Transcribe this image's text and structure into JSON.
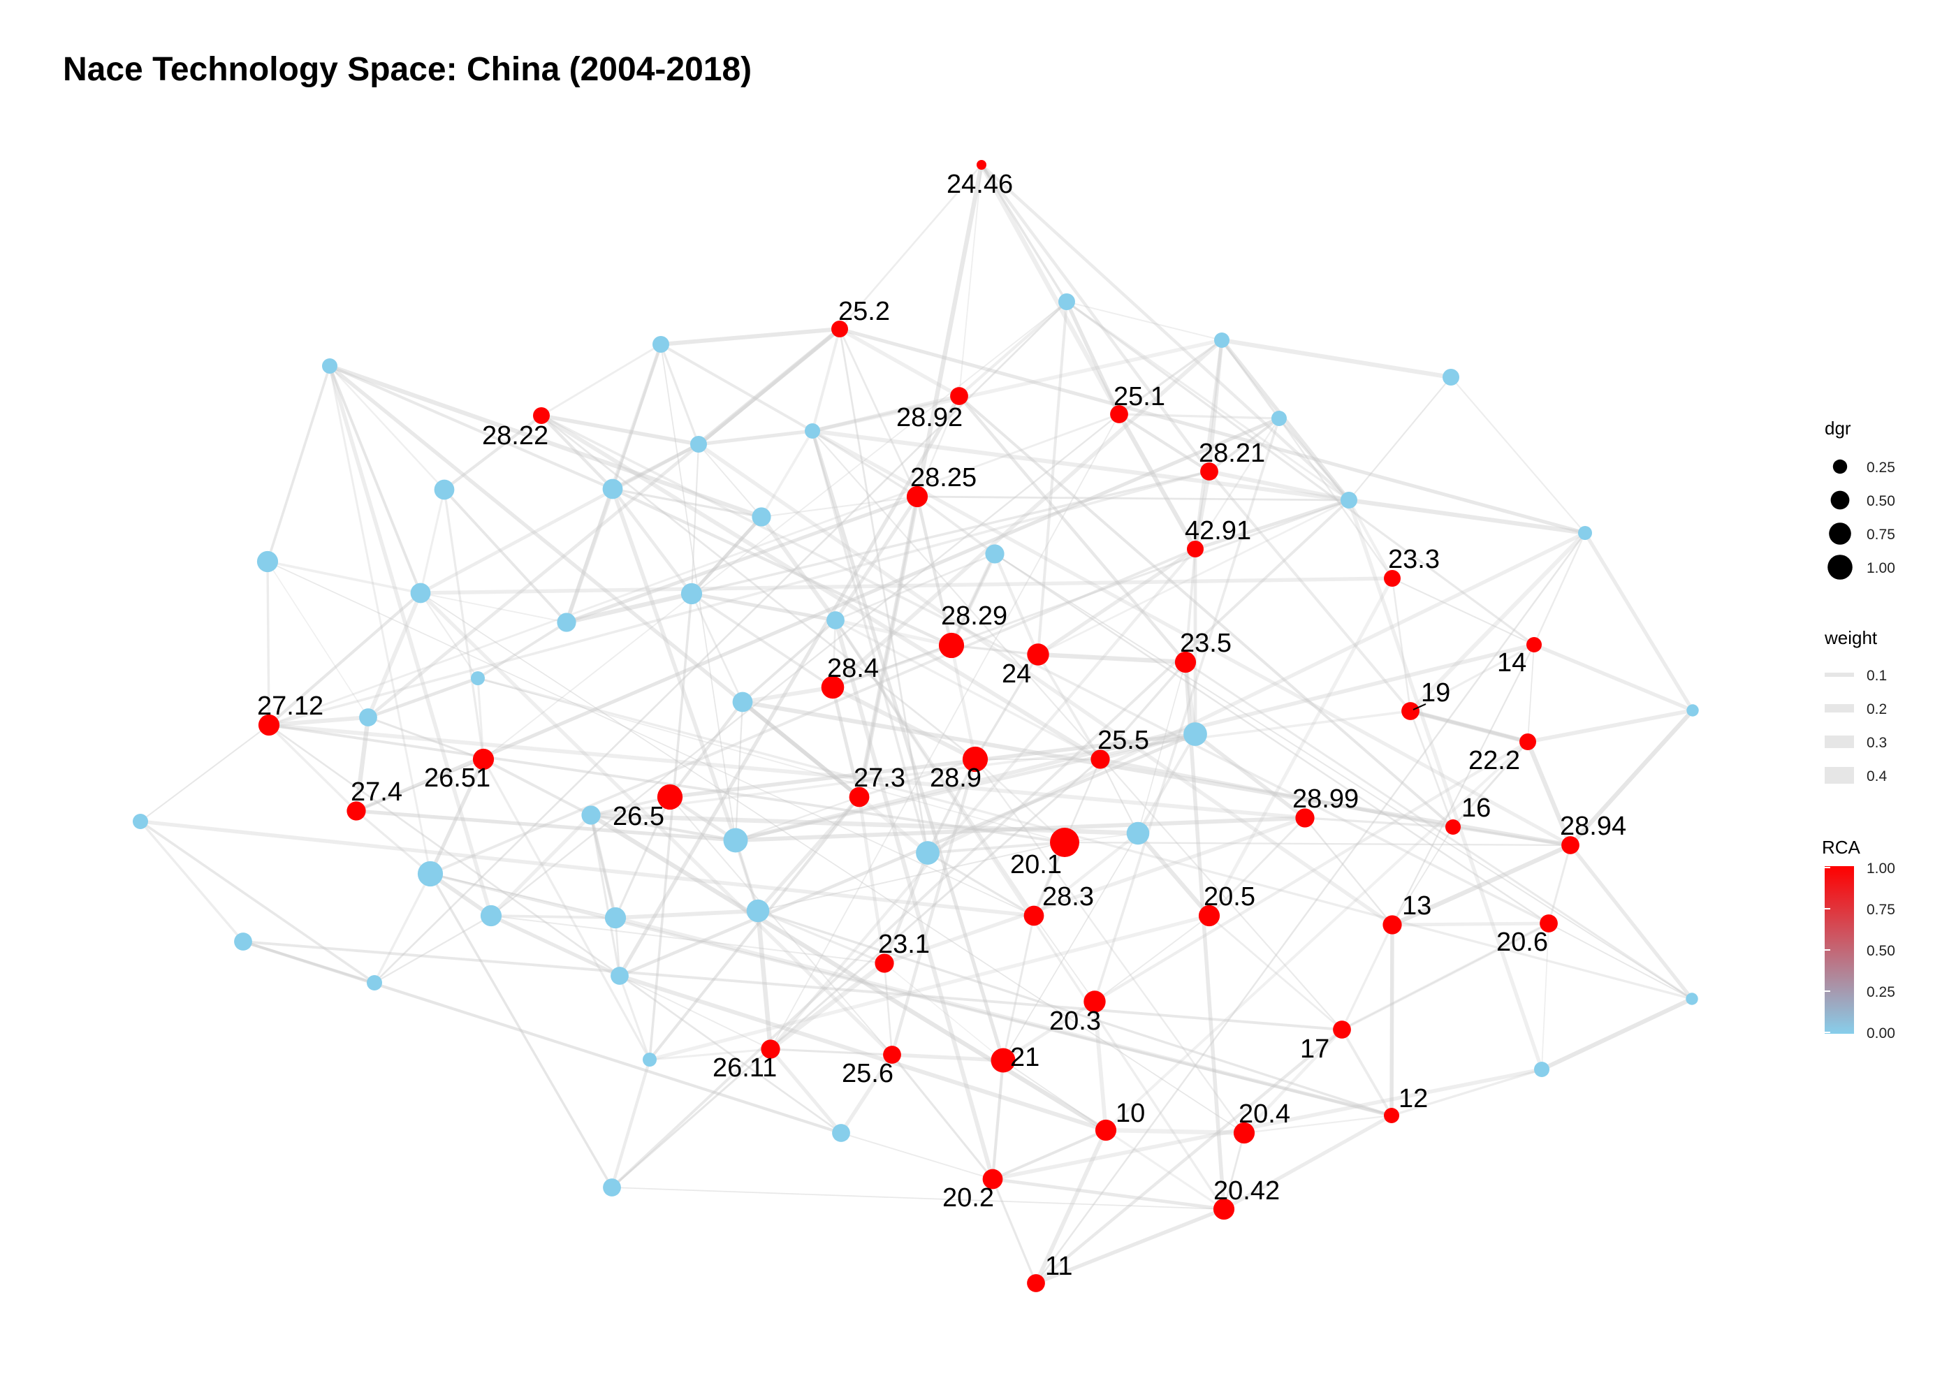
{
  "title": "Nace Technology Space: China (2004-2018)",
  "colors": {
    "rca_low": "#87ceeb",
    "rca_high": "#ff0000",
    "edge": "#c8c8c8",
    "text": "#000000",
    "background": "#ffffff"
  },
  "chart_data": {
    "type": "network",
    "title": "Nace Technology Space: China (2004-2018)",
    "nodes": [
      {
        "id": "24.46",
        "label": "24.46",
        "rca": 1,
        "dgr": 0.05
      },
      {
        "id": "25.2",
        "label": "25.2",
        "rca": 1,
        "dgr": 0.25
      },
      {
        "id": "28.92",
        "label": "28.92",
        "rca": 1,
        "dgr": 0.3
      },
      {
        "id": "25.1",
        "label": "25.1",
        "rca": 1,
        "dgr": 0.3
      },
      {
        "id": "28.22",
        "label": "28.22",
        "rca": 1,
        "dgr": 0.25
      },
      {
        "id": "28.21",
        "label": "28.21",
        "rca": 1,
        "dgr": 0.3
      },
      {
        "id": "28.25",
        "label": "28.25",
        "rca": 1,
        "dgr": 0.45
      },
      {
        "id": "42.91",
        "label": "42.91",
        "rca": 1,
        "dgr": 0.25
      },
      {
        "id": "23.3",
        "label": "23.3",
        "rca": 1,
        "dgr": 0.25
      },
      {
        "id": "28.29",
        "label": "28.29",
        "rca": 1,
        "dgr": 0.7
      },
      {
        "id": "24",
        "label": "24",
        "rca": 1,
        "dgr": 0.5
      },
      {
        "id": "23.5",
        "label": "23.5",
        "rca": 1,
        "dgr": 0.45
      },
      {
        "id": "14",
        "label": "14",
        "rca": 1,
        "dgr": 0.2
      },
      {
        "id": "28.4",
        "label": "28.4",
        "rca": 1,
        "dgr": 0.55
      },
      {
        "id": "19",
        "label": "19",
        "rca": 1,
        "dgr": 0.3
      },
      {
        "id": "27.12",
        "label": "27.12",
        "rca": 1,
        "dgr": 0.45
      },
      {
        "id": "26.51",
        "label": "26.51",
        "rca": 1,
        "dgr": 0.45
      },
      {
        "id": "25.5",
        "label": "25.5",
        "rca": 1,
        "dgr": 0.35
      },
      {
        "id": "22.2",
        "label": "22.2",
        "rca": 1,
        "dgr": 0.25
      },
      {
        "id": "28.9",
        "label": "28.9",
        "rca": 1,
        "dgr": 0.7
      },
      {
        "id": "27.3",
        "label": "27.3",
        "rca": 1,
        "dgr": 0.4
      },
      {
        "id": "27.4",
        "label": "27.4",
        "rca": 1,
        "dgr": 0.35
      },
      {
        "id": "26.5",
        "label": "26.5",
        "rca": 1,
        "dgr": 0.7
      },
      {
        "id": "28.99",
        "label": "28.99",
        "rca": 1,
        "dgr": 0.35
      },
      {
        "id": "16",
        "label": "16",
        "rca": 1,
        "dgr": 0.2
      },
      {
        "id": "28.94",
        "label": "28.94",
        "rca": 1,
        "dgr": 0.3
      },
      {
        "id": "20.1",
        "label": "20.1",
        "rca": 1,
        "dgr": 1.0
      },
      {
        "id": "28.3",
        "label": "28.3",
        "rca": 1,
        "dgr": 0.4
      },
      {
        "id": "20.5",
        "label": "20.5",
        "rca": 1,
        "dgr": 0.45
      },
      {
        "id": "13",
        "label": "13",
        "rca": 1,
        "dgr": 0.35
      },
      {
        "id": "20.6",
        "label": "20.6",
        "rca": 1,
        "dgr": 0.3
      },
      {
        "id": "23.1",
        "label": "23.1",
        "rca": 1,
        "dgr": 0.35
      },
      {
        "id": "20.3",
        "label": "20.3",
        "rca": 1,
        "dgr": 0.5
      },
      {
        "id": "17",
        "label": "17",
        "rca": 1,
        "dgr": 0.3
      },
      {
        "id": "26.11",
        "label": "26.11",
        "rca": 1,
        "dgr": 0.35
      },
      {
        "id": "25.6",
        "label": "25.6",
        "rca": 1,
        "dgr": 0.3
      },
      {
        "id": "21",
        "label": "21",
        "rca": 1,
        "dgr": 0.65
      },
      {
        "id": "10",
        "label": "10",
        "rca": 1,
        "dgr": 0.45
      },
      {
        "id": "20.4",
        "label": "20.4",
        "rca": 1,
        "dgr": 0.45
      },
      {
        "id": "12",
        "label": "12",
        "rca": 1,
        "dgr": 0.2
      },
      {
        "id": "20.2",
        "label": "20.2",
        "rca": 1,
        "dgr": 0.4
      },
      {
        "id": "20.42",
        "label": "20.42",
        "rca": 1,
        "dgr": 0.45
      },
      {
        "id": "11",
        "label": "11",
        "rca": 1,
        "dgr": 0.3
      },
      {
        "id": "b1",
        "label": "",
        "rca": 0,
        "dgr": 0.25
      },
      {
        "id": "b2",
        "label": "",
        "rca": 0,
        "dgr": 0.2
      },
      {
        "id": "b3",
        "label": "",
        "rca": 0,
        "dgr": 0.25
      },
      {
        "id": "b4",
        "label": "",
        "rca": 0,
        "dgr": 0.2
      },
      {
        "id": "b5",
        "label": "",
        "rca": 0,
        "dgr": 0.2
      },
      {
        "id": "b6",
        "label": "",
        "rca": 0,
        "dgr": 0.25
      },
      {
        "id": "b7",
        "label": "",
        "rca": 0,
        "dgr": 0.2
      },
      {
        "id": "b8",
        "label": "",
        "rca": 0,
        "dgr": 0.25
      },
      {
        "id": "b9",
        "label": "",
        "rca": 0,
        "dgr": 0.15
      },
      {
        "id": "b10",
        "label": "",
        "rca": 0,
        "dgr": 0.35
      },
      {
        "id": "b11",
        "label": "",
        "rca": 0,
        "dgr": 0.4
      },
      {
        "id": "b12",
        "label": "",
        "rca": 0,
        "dgr": 0.25
      },
      {
        "id": "b13",
        "label": "",
        "rca": 0,
        "dgr": 0.4
      },
      {
        "id": "b14",
        "label": "",
        "rca": 0,
        "dgr": 0.45
      },
      {
        "id": "b15",
        "label": "",
        "rca": 0,
        "dgr": 0.35
      },
      {
        "id": "b16",
        "label": "",
        "rca": 0,
        "dgr": 0.3
      },
      {
        "id": "b17",
        "label": "",
        "rca": 0,
        "dgr": 0.4
      },
      {
        "id": "b18",
        "label": "",
        "rca": 0,
        "dgr": 0.35
      },
      {
        "id": "b19",
        "label": "",
        "rca": 0,
        "dgr": 0.45
      },
      {
        "id": "b20",
        "label": "",
        "rca": 0,
        "dgr": 0.4
      },
      {
        "id": "b21",
        "label": "",
        "rca": 0,
        "dgr": 0.15
      },
      {
        "id": "b22",
        "label": "",
        "rca": 0,
        "dgr": 0.3
      },
      {
        "id": "b23",
        "label": "",
        "rca": 0,
        "dgr": 0.6
      },
      {
        "id": "b24",
        "label": "",
        "rca": 0,
        "dgr": 0.55
      },
      {
        "id": "b25",
        "label": "",
        "rca": 0,
        "dgr": 0.35
      },
      {
        "id": "b26",
        "label": "",
        "rca": 0,
        "dgr": 0.6
      },
      {
        "id": "b27",
        "label": "",
        "rca": 0,
        "dgr": 0.7
      },
      {
        "id": "b28",
        "label": "",
        "rca": 0,
        "dgr": 0.65
      },
      {
        "id": "b29",
        "label": "",
        "rca": 0,
        "dgr": 0.45
      },
      {
        "id": "b30",
        "label": "",
        "rca": 0,
        "dgr": 0.2
      },
      {
        "id": "b31",
        "label": "",
        "rca": 0,
        "dgr": 0.45
      },
      {
        "id": "b32",
        "label": "",
        "rca": 0,
        "dgr": 0.55
      },
      {
        "id": "b33",
        "label": "",
        "rca": 0,
        "dgr": 0.3
      },
      {
        "id": "b34",
        "label": "",
        "rca": 0,
        "dgr": 0.3
      },
      {
        "id": "b35",
        "label": "",
        "rca": 0,
        "dgr": 0.2
      },
      {
        "id": "b36",
        "label": "",
        "rca": 0,
        "dgr": 0.1
      },
      {
        "id": "b37",
        "label": "",
        "rca": 0,
        "dgr": 0.1
      },
      {
        "id": "b38",
        "label": "",
        "rca": 0,
        "dgr": 0.15
      },
      {
        "id": "b39",
        "label": "",
        "rca": 0,
        "dgr": 0.2
      }
    ],
    "legend": {
      "dgr": {
        "title": "dgr",
        "breaks": [
          "0.25",
          "0.50",
          "0.75",
          "1.00"
        ],
        "values": [
          0.25,
          0.5,
          0.75,
          1.0
        ]
      },
      "weight": {
        "title": "weight",
        "breaks": [
          "0.1",
          "0.2",
          "0.3",
          "0.4"
        ],
        "values": [
          0.1,
          0.2,
          0.3,
          0.4
        ]
      },
      "rca": {
        "title": "RCA",
        "breaks": [
          "1.00",
          "0.75",
          "0.50",
          "0.25",
          "0.00"
        ],
        "low": "#87ceeb",
        "high": "#ff0000"
      }
    },
    "legend_position": "right"
  }
}
